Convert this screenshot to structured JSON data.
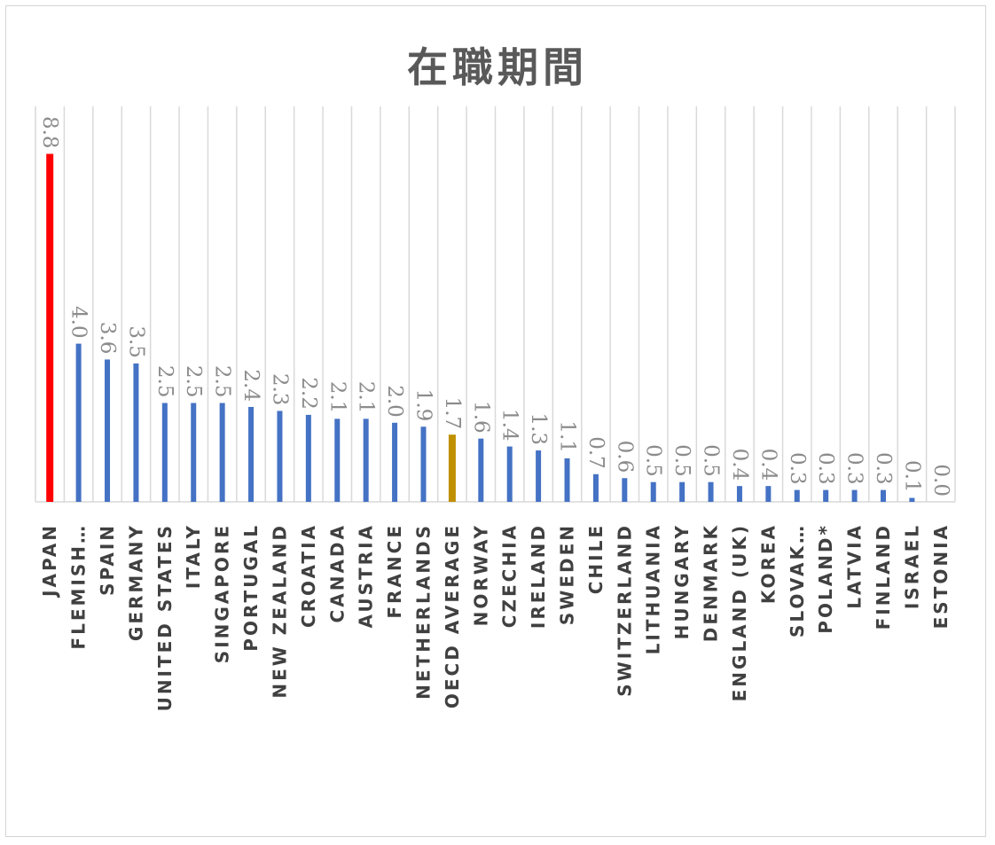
{
  "chart_data": {
    "type": "bar",
    "title": "在職期間",
    "categories": [
      "JAPAN",
      "FLEMISH…",
      "SPAIN",
      "GERMANY",
      "UNITED STATES",
      "ITALY",
      "SINGAPORE",
      "PORTUGAL",
      "NEW ZEALAND",
      "CROATIA",
      "CANADA",
      "AUSTRIA",
      "FRANCE",
      "NETHERLANDS",
      "OECD AVERAGE",
      "NORWAY",
      "CZECHIA",
      "IRELAND",
      "SWEDEN",
      "CHILE",
      "SWITZERLAND",
      "LITHUANIA",
      "HUNGARY",
      "DENMARK",
      "ENGLAND (UK)",
      "KOREA",
      "SLOVAK…",
      "POLAND*",
      "LATVIA",
      "FINLAND",
      "ISRAEL",
      "ESTONIA"
    ],
    "values": [
      8.8,
      4.0,
      3.6,
      3.5,
      2.5,
      2.5,
      2.5,
      2.4,
      2.3,
      2.2,
      2.1,
      2.1,
      2.0,
      1.9,
      1.7,
      1.6,
      1.4,
      1.3,
      1.1,
      0.7,
      0.6,
      0.5,
      0.5,
      0.5,
      0.4,
      0.4,
      0.3,
      0.3,
      0.3,
      0.3,
      0.1,
      0.0
    ],
    "value_labels": [
      "8.8",
      "4.0",
      "3.6",
      "3.5",
      "2.5",
      "2.5",
      "2.5",
      "2.4",
      "2.3",
      "2.2",
      "2.1",
      "2.1",
      "2.0",
      "1.9",
      "1.7",
      "1.6",
      "1.4",
      "1.3",
      "1.1",
      "0.7",
      "0.6",
      "0.5",
      "0.5",
      "0.5",
      "0.4",
      "0.4",
      "0.3",
      "0.3",
      "0.3",
      "0.3",
      "0.1",
      "0.0"
    ],
    "ylim": [
      0,
      10
    ],
    "grid": "vertical",
    "legend": "none",
    "colors": {
      "default": "#4472c4",
      "highlight_JAPAN": "#ff0000",
      "highlight_OECD AVERAGE": "#bf9000",
      "grid": "#d9d9d9",
      "axis": "#d9d9d9"
    }
  }
}
